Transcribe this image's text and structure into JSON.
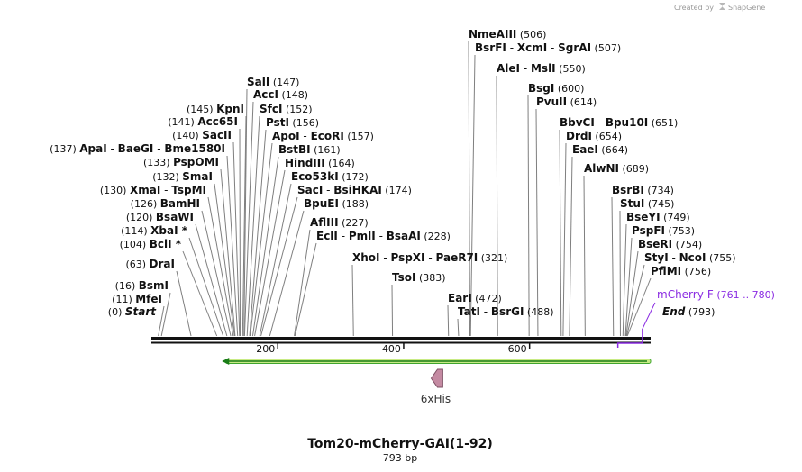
{
  "brand": {
    "prefix": "Created by",
    "name": "SnapGene"
  },
  "map": {
    "title": "Tom20-mCherry-GAI(1-92)",
    "subtitle": "793 bp",
    "length": 793,
    "ruler_ticks": [
      {
        "label": "200",
        "value": 200
      },
      {
        "label": "400",
        "value": 400
      },
      {
        "label": "600",
        "value": 600
      }
    ],
    "colors": {
      "backbone": "#111111",
      "connector": "#7f7f7f",
      "primer": "#8a2be2",
      "feature_outline": "#3fa52f",
      "feature_fill": "#c8eb84",
      "his_fill": "#c48aa2",
      "his_stroke": "#7d4f63"
    }
  },
  "sites": [
    {
      "side": "left",
      "parts": [
        "Start"
      ],
      "italic": true,
      "pos_text": "(0)",
      "value": 0
    },
    {
      "side": "left",
      "parts": [
        "MfeI"
      ],
      "pos_text": "(11)",
      "value": 11
    },
    {
      "side": "left",
      "parts": [
        "BsmI"
      ],
      "pos_text": "(16)",
      "value": 16
    },
    {
      "side": "left",
      "parts": [
        "DraI"
      ],
      "pos_text": "(63)",
      "value": 63
    },
    {
      "side": "left",
      "parts": [
        "BclI *"
      ],
      "pos_text": "(104)",
      "value": 104
    },
    {
      "side": "left",
      "parts": [
        "XbaI *"
      ],
      "pos_text": "(114)",
      "value": 114
    },
    {
      "side": "left",
      "parts": [
        "BsaWI"
      ],
      "pos_text": "(120)",
      "value": 120
    },
    {
      "side": "left",
      "parts": [
        "BamHI"
      ],
      "pos_text": "(126)",
      "value": 126
    },
    {
      "side": "left",
      "parts": [
        "XmaI",
        "TspMI"
      ],
      "pos_text": "(130)",
      "value": 130
    },
    {
      "side": "left",
      "parts": [
        "SmaI"
      ],
      "pos_text": "(132)",
      "value": 132
    },
    {
      "side": "left",
      "parts": [
        "PspOMI"
      ],
      "pos_text": "(133)",
      "value": 133
    },
    {
      "side": "left",
      "parts": [
        "ApaI",
        "BaeGI",
        "Bme1580I"
      ],
      "pos_text": "(137)",
      "value": 137
    },
    {
      "side": "left",
      "parts": [
        "SacII"
      ],
      "pos_text": "(140)",
      "value": 140
    },
    {
      "side": "left",
      "parts": [
        "Acc65I"
      ],
      "pos_text": "(141)",
      "value": 141
    },
    {
      "side": "left",
      "parts": [
        "KpnI"
      ],
      "pos_text": "(145)",
      "value": 145
    },
    {
      "side": "right",
      "parts": [
        "SalI"
      ],
      "pos_text": "(147)",
      "value": 147
    },
    {
      "side": "right",
      "parts": [
        "AccI"
      ],
      "pos_text": "(148)",
      "value": 148
    },
    {
      "side": "right",
      "parts": [
        "SfcI"
      ],
      "pos_text": "(152)",
      "value": 152
    },
    {
      "side": "right",
      "parts": [
        "PstI"
      ],
      "pos_text": "(156)",
      "value": 156
    },
    {
      "side": "right",
      "parts": [
        "ApoI",
        "EcoRI"
      ],
      "pos_text": "(157)",
      "value": 157
    },
    {
      "side": "right",
      "parts": [
        "BstBI"
      ],
      "pos_text": "(161)",
      "value": 161
    },
    {
      "side": "right",
      "parts": [
        "HindIII"
      ],
      "pos_text": "(164)",
      "value": 164
    },
    {
      "side": "right",
      "parts": [
        "Eco53kI"
      ],
      "pos_text": "(172)",
      "value": 172
    },
    {
      "side": "right",
      "parts": [
        "SacI",
        "BsiHKAI"
      ],
      "pos_text": "(174)",
      "value": 174
    },
    {
      "side": "right",
      "parts": [
        "BpuEI"
      ],
      "pos_text": "(188)",
      "value": 188
    },
    {
      "side": "right",
      "parts": [
        "AflIII"
      ],
      "pos_text": "(227)",
      "value": 227
    },
    {
      "side": "right",
      "parts": [
        "EclI",
        "PmlI",
        "BsaAI"
      ],
      "pos_text": "(228)",
      "value": 228
    },
    {
      "side": "right",
      "parts": [
        "XhoI",
        "PspXI",
        "PaeR7I"
      ],
      "pos_text": "(321)",
      "value": 321
    },
    {
      "side": "right",
      "parts": [
        "TsoI"
      ],
      "pos_text": "(383)",
      "value": 383
    },
    {
      "side": "right",
      "parts": [
        "EarI"
      ],
      "pos_text": "(472)",
      "value": 472
    },
    {
      "side": "right",
      "parts": [
        "TatI",
        "BsrGI"
      ],
      "pos_text": "(488)",
      "value": 488
    },
    {
      "side": "right",
      "parts": [
        "NmeAIII"
      ],
      "pos_text": "(506)",
      "value": 506
    },
    {
      "side": "right",
      "parts": [
        "BsrFI",
        "XcmI",
        "SgrAI"
      ],
      "pos_text": "(507)",
      "value": 507
    },
    {
      "side": "right",
      "parts": [
        "AleI",
        "MslI"
      ],
      "pos_text": "(550)",
      "value": 550
    },
    {
      "side": "right",
      "parts": [
        "BsgI"
      ],
      "pos_text": "(600)",
      "value": 600
    },
    {
      "side": "right",
      "parts": [
        "PvuII"
      ],
      "pos_text": "(614)",
      "value": 614
    },
    {
      "side": "right",
      "parts": [
        "BbvCI",
        "Bpu10I"
      ],
      "pos_text": "(651)",
      "value": 651
    },
    {
      "side": "right",
      "parts": [
        "DrdI"
      ],
      "pos_text": "(654)",
      "value": 654
    },
    {
      "side": "right",
      "parts": [
        "EaeI"
      ],
      "pos_text": "(664)",
      "value": 664
    },
    {
      "side": "right",
      "parts": [
        "AlwNI"
      ],
      "pos_text": "(689)",
      "value": 689
    },
    {
      "side": "right",
      "parts": [
        "BsrBI"
      ],
      "pos_text": "(734)",
      "value": 734
    },
    {
      "side": "right",
      "parts": [
        "StuI"
      ],
      "pos_text": "(745)",
      "value": 745
    },
    {
      "side": "right",
      "parts": [
        "BseYI"
      ],
      "pos_text": "(749)",
      "value": 749
    },
    {
      "side": "right",
      "parts": [
        "PspFI"
      ],
      "pos_text": "(753)",
      "value": 753
    },
    {
      "side": "right",
      "parts": [
        "BseRI"
      ],
      "pos_text": "(754)",
      "value": 754
    },
    {
      "side": "right",
      "parts": [
        "StyI",
        "NcoI"
      ],
      "pos_text": "(755)",
      "value": 755
    },
    {
      "side": "right",
      "parts": [
        "PflMI"
      ],
      "pos_text": "(756)",
      "value": 756
    },
    {
      "side": "right",
      "parts": [
        "End"
      ],
      "italic": true,
      "pos_text": "(793)",
      "value": 793
    }
  ],
  "primer": {
    "name": "mCherry-F",
    "range_text": "(761 .. 780)",
    "start": 761,
    "end": 780
  },
  "features": [
    {
      "name": "",
      "type": "arrow",
      "direction": "left",
      "start": 112,
      "end": 793
    },
    {
      "name": "6xHis",
      "type": "arrow",
      "direction": "left",
      "start": 443,
      "end": 460
    }
  ]
}
